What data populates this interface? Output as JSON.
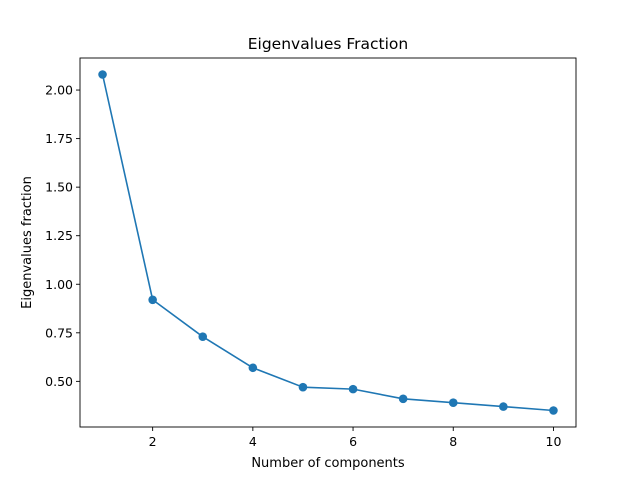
{
  "chart_data": {
    "type": "line",
    "title": "Eigenvalues Fraction",
    "xlabel": "Number of components",
    "ylabel": "Eigenvalues fraction",
    "x": [
      1,
      2,
      3,
      4,
      5,
      6,
      7,
      8,
      9,
      10
    ],
    "series": [
      {
        "values": [
          2.08,
          0.92,
          0.73,
          0.57,
          0.47,
          0.46,
          0.41,
          0.39,
          0.37,
          0.35
        ]
      }
    ],
    "xlim": [
      0.55,
      10.45
    ],
    "ylim": [
      0.265,
      2.165
    ],
    "xticks": [
      2,
      4,
      6,
      8,
      10
    ],
    "xtick_labels": [
      "2",
      "4",
      "6",
      "8",
      "10"
    ],
    "yticks": [
      0.5,
      0.75,
      1.0,
      1.25,
      1.5,
      1.75,
      2.0
    ],
    "ytick_labels": [
      "0.50",
      "0.75",
      "1.00",
      "1.25",
      "1.50",
      "1.75",
      "2.00"
    ],
    "grid": false,
    "markers": true,
    "color": "#1f77b4"
  }
}
